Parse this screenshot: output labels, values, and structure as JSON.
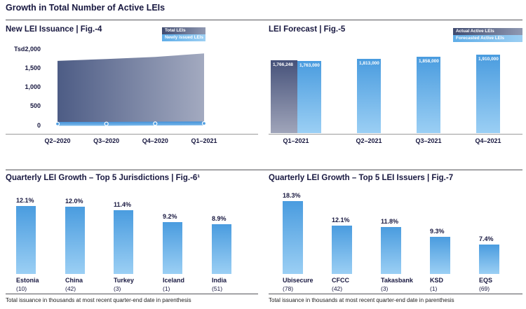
{
  "page_title": "Growth in Total Number of Active LEIs",
  "footnote": "Total issuance in thousands at most recent quarter-end date in parenthesis",
  "colors": {
    "heading_text": "#181840",
    "area_gradient": [
      "#4d5c85",
      "#a3aac0"
    ],
    "dark_bar_gradient": [
      "#46527a",
      "#a0a5ba"
    ],
    "light_bar_gradient": [
      "#4a9cdf",
      "#9bcff4"
    ],
    "issued_line": "#4f9fe2",
    "legend_dark_gradient": [
      "#3f4b70",
      "#9099b2"
    ],
    "legend_light_gradient": [
      "#5fade8",
      "#9ccff3"
    ]
  },
  "chart_data": [
    {
      "id": "fig4",
      "type": "area",
      "title": "New LEI Issuance | Fig.-4",
      "unit_label": "Tsd.",
      "ylim": [
        0,
        2000
      ],
      "y_ticks": [
        "2,000",
        "1,500",
        "1,000",
        "500",
        "0"
      ],
      "x": [
        "Q2–2020",
        "Q3–2020",
        "Q4–2020",
        "Q1–2021"
      ],
      "legend": [
        "Total LEIs",
        "Newly issued LEIs"
      ],
      "series": [
        {
          "name": "Total LEIs",
          "type": "area",
          "values": [
            1690,
            1740,
            1795,
            1885
          ]
        },
        {
          "name": "Newly issued LEIs",
          "type": "line",
          "values": [
            40,
            42,
            47,
            53
          ]
        }
      ]
    },
    {
      "id": "fig5",
      "type": "bar",
      "title": "LEI Forecast | Fig.-5",
      "ylim": [
        0,
        1910000
      ],
      "categories": [
        "Q1–2021",
        "Q2–2021",
        "Q3–2021",
        "Q4–2021"
      ],
      "legend": [
        "Actual Active LEIs",
        "Forecasted Active LEIs"
      ],
      "series": [
        {
          "name": "Actual Active LEIs",
          "values": [
            1766248
          ],
          "value_labels": [
            "1,766,248"
          ],
          "category_index": [
            0
          ]
        },
        {
          "name": "Forecasted Active LEIs",
          "values": [
            1763000,
            1813000,
            1858000,
            1910000
          ],
          "value_labels": [
            "1,763,000",
            "1,813,000",
            "1,858,000",
            "1,910,000"
          ]
        }
      ]
    },
    {
      "id": "fig6",
      "type": "bar",
      "title": "Quarterly LEI Growth – Top 5 Jurisdictions | Fig.-6¹",
      "ylim": [
        0,
        13
      ],
      "categories": [
        "Estonia",
        "China",
        "Turkey",
        "Iceland",
        "India"
      ],
      "sub_labels": [
        "(10)",
        "(42)",
        "(3)",
        "(1)",
        "(51)"
      ],
      "values": [
        12.1,
        12.0,
        11.4,
        9.2,
        8.9
      ],
      "value_labels": [
        "12.1%",
        "12.0%",
        "11.4%",
        "9.2%",
        "8.9%"
      ]
    },
    {
      "id": "fig7",
      "type": "bar",
      "title": "Quarterly LEI Growth – Top 5 LEI Issuers | Fig.-7",
      "ylim": [
        0,
        19
      ],
      "categories": [
        "Ubisecure",
        "CFCC",
        "Takasbank",
        "KSD",
        "EQS"
      ],
      "sub_labels": [
        "(78)",
        "(42)",
        "(3)",
        "(1)",
        "(69)"
      ],
      "values": [
        18.3,
        12.1,
        11.8,
        9.3,
        7.4
      ],
      "value_labels": [
        "18.3%",
        "12.1%",
        "11.8%",
        "9.3%",
        "7.4%"
      ]
    }
  ]
}
